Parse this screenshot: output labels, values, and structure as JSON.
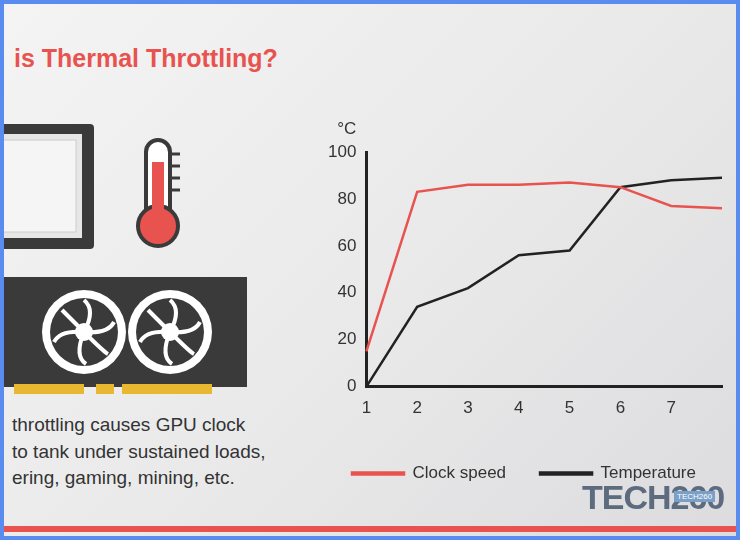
{
  "header": {
    "title": "is Thermal Throttling?"
  },
  "caption": [
    "throttling causes GPU clock",
    "to tank under sustained loads,",
    "ering, gaming, mining, etc."
  ],
  "watermark": "TECH260",
  "chart_data": {
    "type": "line",
    "y_label": "°C",
    "categories": [
      "1",
      "2",
      "3",
      "4",
      "5",
      "6",
      "7",
      null
    ],
    "series": [
      {
        "name": "Clock speed",
        "color": "#e8534f",
        "values": [
          15,
          83,
          86,
          86,
          87,
          85,
          77,
          76
        ]
      },
      {
        "name": "Temperature",
        "color": "#222222",
        "values": [
          0,
          34,
          42,
          56,
          58,
          85,
          88,
          89
        ]
      }
    ],
    "ylim": [
      0,
      100
    ],
    "yticks": [
      0,
      20,
      40,
      60,
      80,
      100
    ],
    "grid": false,
    "legend": "bottom",
    "marker": "none"
  }
}
